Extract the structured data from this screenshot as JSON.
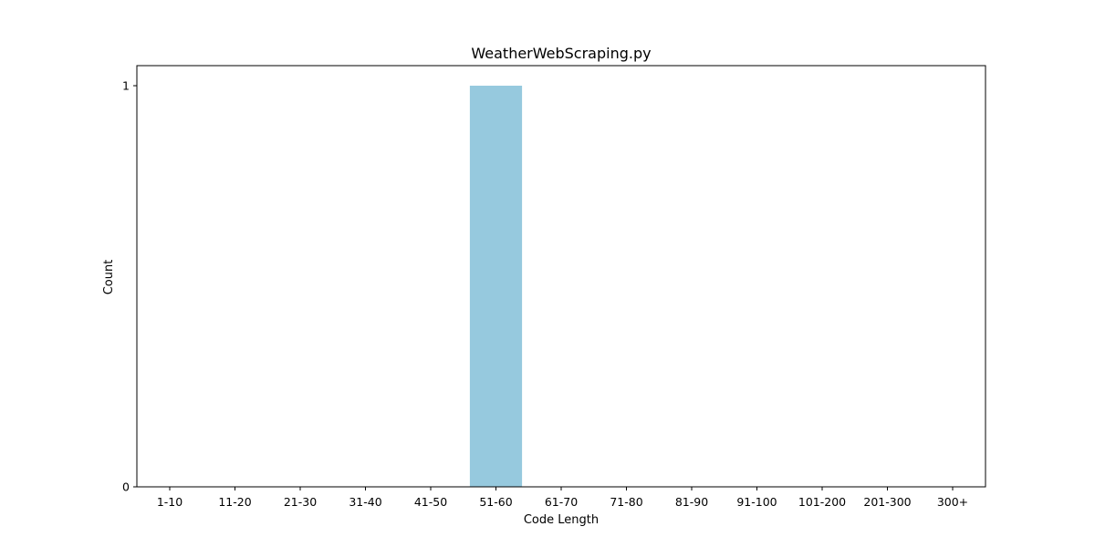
{
  "chart_data": {
    "type": "bar",
    "title": "WeatherWebScraping.py",
    "xlabel": "Code Length",
    "ylabel": "Count",
    "categories": [
      "1-10",
      "11-20",
      "21-30",
      "31-40",
      "41-50",
      "51-60",
      "61-70",
      "71-80",
      "81-90",
      "91-100",
      "101-200",
      "201-300",
      "300+"
    ],
    "values": [
      0,
      0,
      0,
      0,
      0,
      1,
      0,
      0,
      0,
      0,
      0,
      0,
      0
    ],
    "ylim": [
      0,
      1.05
    ],
    "yticks": [
      0,
      1
    ],
    "bar_color": "#96c9de",
    "grid": false,
    "legend": "none"
  }
}
